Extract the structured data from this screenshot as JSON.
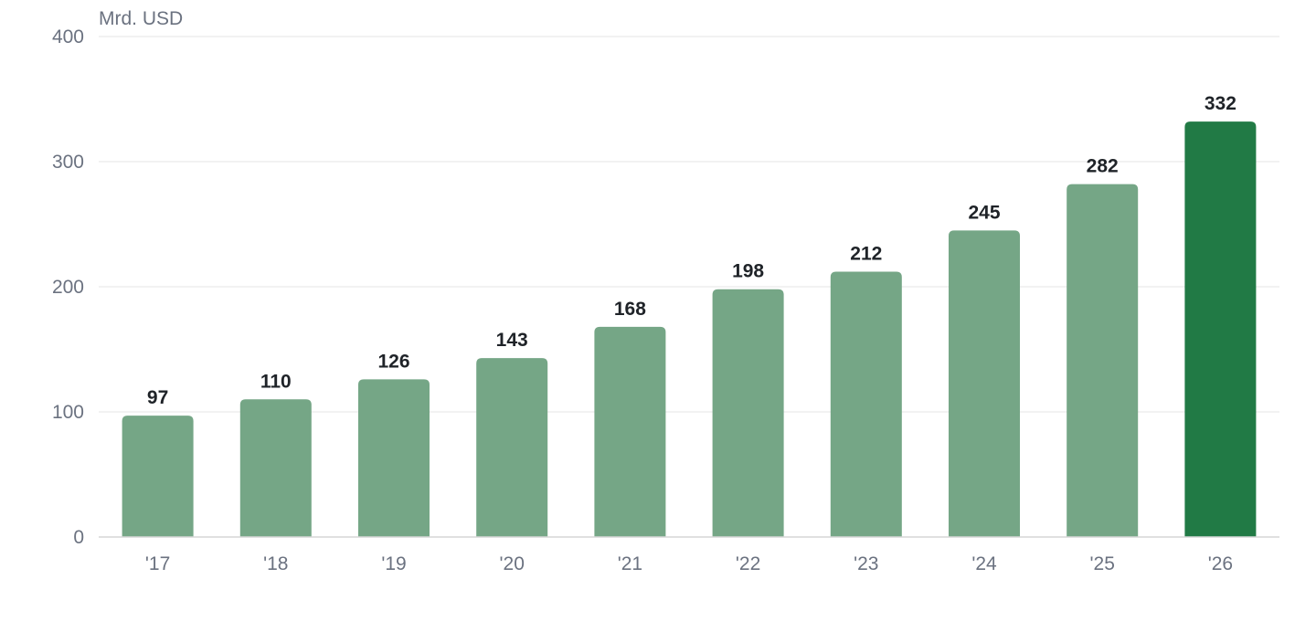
{
  "chart_data": {
    "type": "bar",
    "unit_label": "Mrd. USD",
    "categories": [
      "'17",
      "'18",
      "'19",
      "'20",
      "'21",
      "'22",
      "'23",
      "'24",
      "'25",
      "'26"
    ],
    "values": [
      97,
      110,
      126,
      143,
      168,
      198,
      212,
      245,
      282,
      332
    ],
    "ylim": [
      0,
      400
    ],
    "yticks": [
      0,
      100,
      200,
      300,
      400
    ],
    "grid": true,
    "legend": "none",
    "highlight_index": 9,
    "colors": {
      "bar": "#75a686",
      "bar_highlight": "#217a45",
      "value_label": "#1f2328",
      "axis_text": "#6b7280",
      "grid": "#e6e6e6"
    }
  }
}
